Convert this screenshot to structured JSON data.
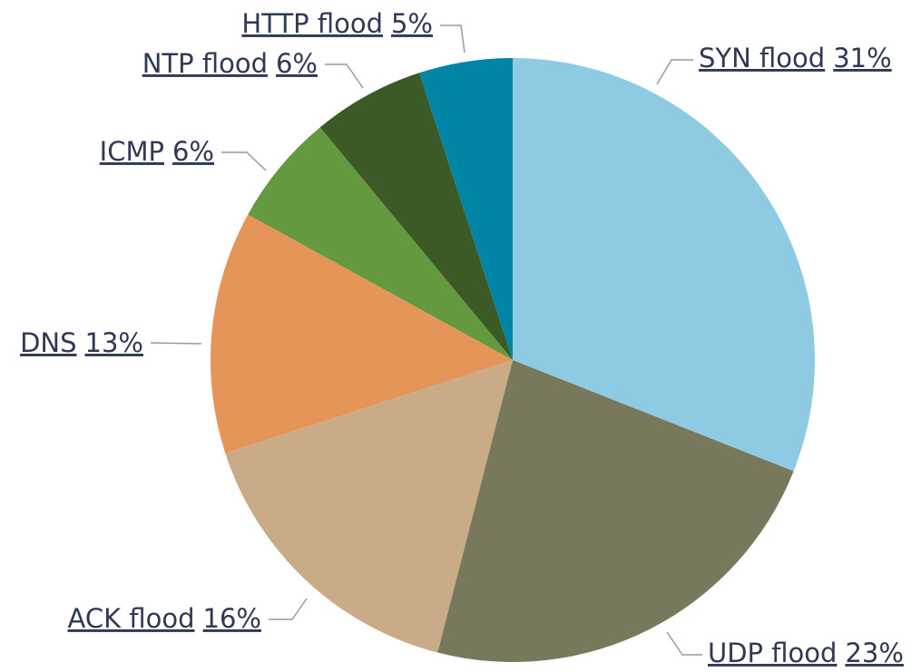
{
  "chart_data": {
    "type": "pie",
    "categories": [
      "SYN flood",
      "UDP flood",
      "ACK flood",
      "DNS",
      "ICMP",
      "NTP flood",
      "HTTP flood"
    ],
    "values": [
      31,
      23,
      16,
      13,
      6,
      6,
      5
    ],
    "value_labels": [
      "31%",
      "23%",
      "16%",
      "13%",
      "6%",
      "6%",
      "5%"
    ],
    "colors": [
      "#8ecbe3",
      "#78785c",
      "#c9ab88",
      "#e69558",
      "#65993f",
      "#3b5a26",
      "#0085a6"
    ]
  }
}
